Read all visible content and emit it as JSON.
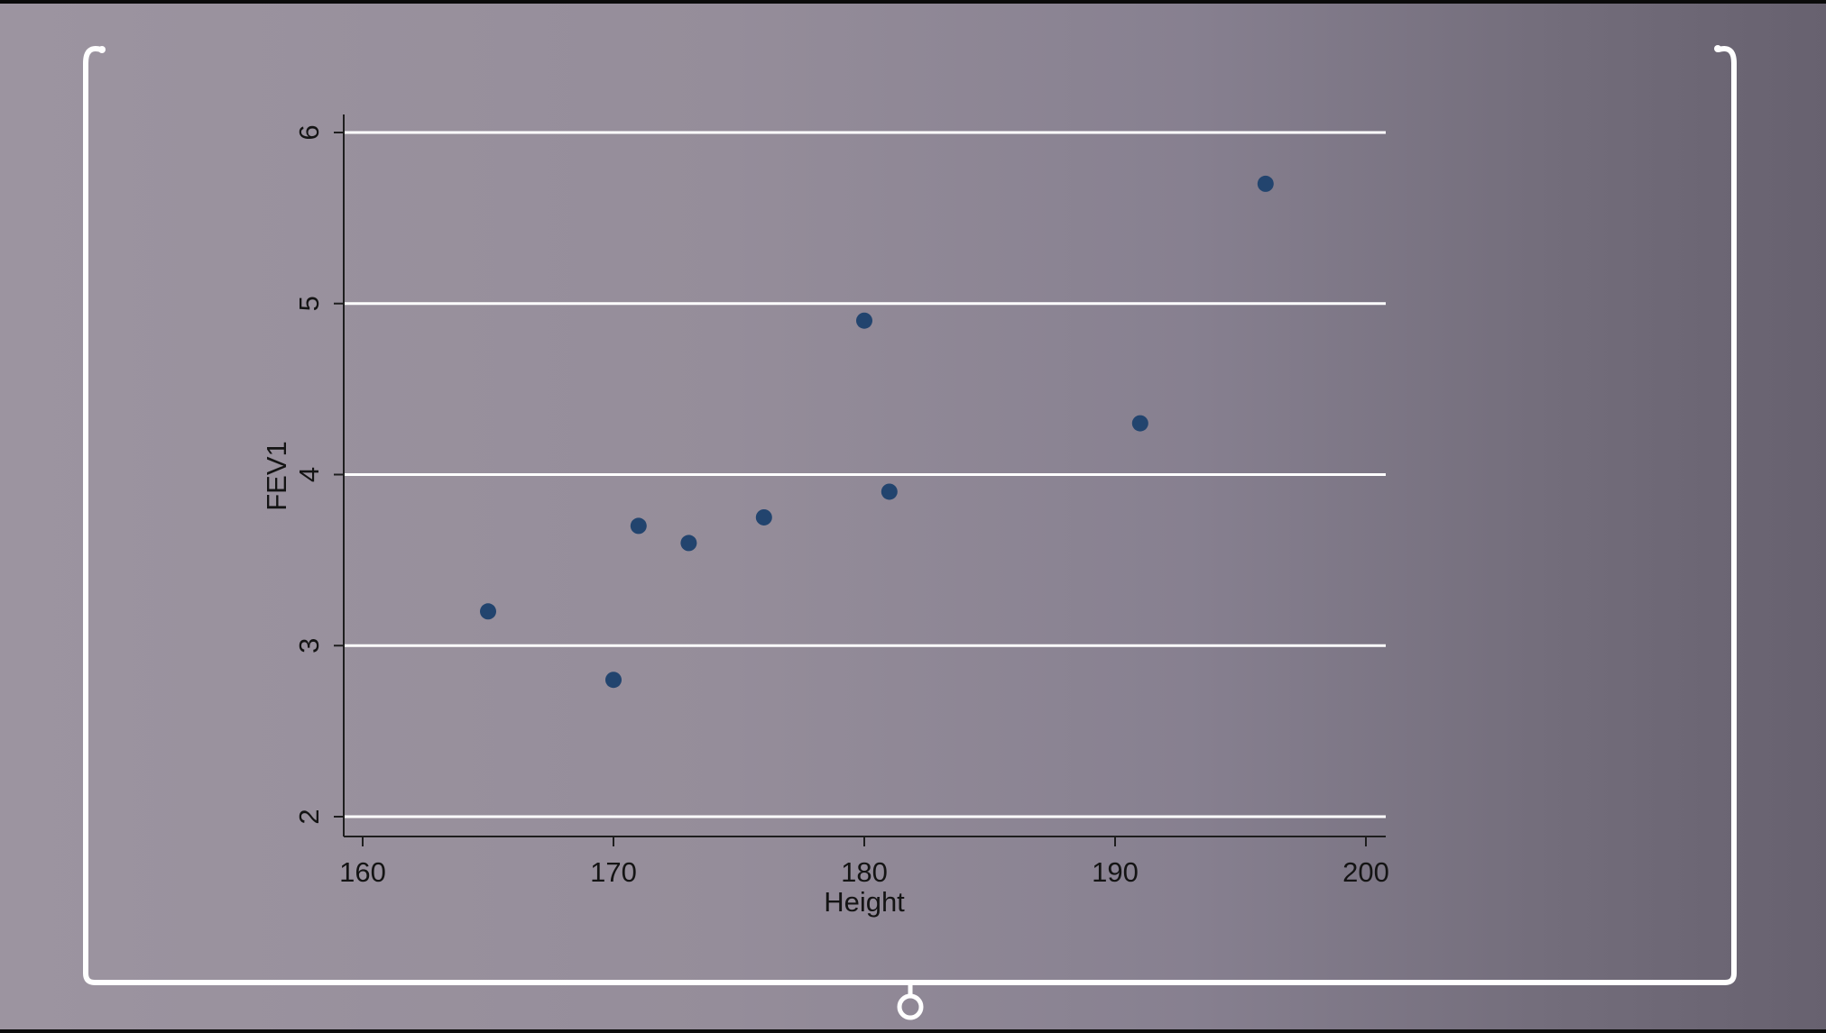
{
  "colors": {
    "frame": "#ffffff",
    "gridline": "#ffffff",
    "axis": "#1e1e1e",
    "point": "#22446e"
  },
  "chart_data": {
    "type": "scatter",
    "xlabel": "Height",
    "ylabel": "FEV1",
    "xlim": [
      159,
      201
    ],
    "ylim": [
      1.9,
      6.1
    ],
    "xticks": [
      160,
      170,
      180,
      190,
      200
    ],
    "yticks": [
      2,
      3,
      4,
      5,
      6
    ],
    "grid": "horizontal",
    "series": [
      {
        "points": [
          {
            "x": 165,
            "y": 3.2
          },
          {
            "x": 170,
            "y": 2.8
          },
          {
            "x": 171,
            "y": 3.7
          },
          {
            "x": 173,
            "y": 3.6
          },
          {
            "x": 176,
            "y": 3.75
          },
          {
            "x": 180,
            "y": 4.9
          },
          {
            "x": 181,
            "y": 3.9
          },
          {
            "x": 191,
            "y": 4.3
          },
          {
            "x": 196,
            "y": 5.7
          }
        ]
      }
    ]
  }
}
